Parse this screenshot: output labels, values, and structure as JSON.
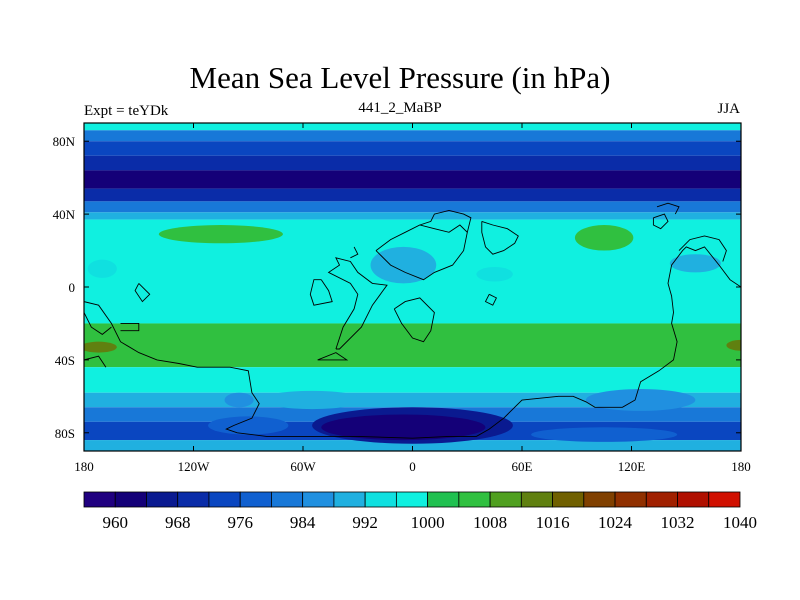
{
  "chart_data": {
    "type": "contour-map",
    "title": "Mean Sea Level Pressure (in hPa)",
    "experiment_label": "Expt = teYDk",
    "run_label": "441_2_MaBP",
    "season_label": "JJA",
    "xlim": [
      -180,
      180
    ],
    "ylim": [
      -90,
      90
    ],
    "x_ticks": [
      {
        "value": -180,
        "label": "180"
      },
      {
        "value": -120,
        "label": "120W"
      },
      {
        "value": -60,
        "label": "60W"
      },
      {
        "value": 0,
        "label": "0"
      },
      {
        "value": 60,
        "label": "60E"
      },
      {
        "value": 120,
        "label": "120E"
      },
      {
        "value": 180,
        "label": "180"
      }
    ],
    "y_ticks": [
      {
        "value": 80,
        "label": "80N"
      },
      {
        "value": 40,
        "label": "40N"
      },
      {
        "value": 0,
        "label": "0"
      },
      {
        "value": -40,
        "label": "40S"
      },
      {
        "value": -80,
        "label": "80S"
      }
    ],
    "colorbar": {
      "levels": [
        960,
        964,
        968,
        972,
        976,
        980,
        984,
        988,
        992,
        996,
        1000,
        1004,
        1008,
        1012,
        1016,
        1020,
        1024,
        1028,
        1032,
        1036,
        1040
      ],
      "labels": [
        "960",
        "968",
        "976",
        "984",
        "992",
        "1000",
        "1008",
        "1016",
        "1024",
        "1032",
        "1040"
      ],
      "colors": [
        "#200080",
        "#140078",
        "#0a1a90",
        "#0a2ca8",
        "#0a46c0",
        "#1060d0",
        "#1878d8",
        "#2090e0",
        "#20b0e0",
        "#10e0e0",
        "#10f0e0",
        "#20c050",
        "#30c040",
        "#50a020",
        "#608010",
        "#706000",
        "#804000",
        "#903000",
        "#a02000",
        "#b01000",
        "#d01000"
      ]
    },
    "bands": [
      {
        "lat_max": 90,
        "lat_min": 86,
        "level": 1000
      },
      {
        "lat_max": 86,
        "lat_min": 80,
        "level": 984
      },
      {
        "lat_max": 80,
        "lat_min": 72,
        "level": 976
      },
      {
        "lat_max": 72,
        "lat_min": 64,
        "level": 972
      },
      {
        "lat_max": 64,
        "lat_min": 54,
        "level": 964
      },
      {
        "lat_max": 54,
        "lat_min": 47,
        "level": 972
      },
      {
        "lat_max": 47,
        "lat_min": 41,
        "level": 984
      },
      {
        "lat_max": 41,
        "lat_min": 37,
        "level": 992
      },
      {
        "lat_max": 37,
        "lat_min": -20,
        "level": 1000
      },
      {
        "lat_max": -20,
        "lat_min": -44,
        "level": 1008
      },
      {
        "lat_max": -44,
        "lat_min": -58,
        "level": 1000
      },
      {
        "lat_max": -58,
        "lat_min": -66,
        "level": 992
      },
      {
        "lat_max": -66,
        "lat_min": -74,
        "level": 984
      },
      {
        "lat_max": -74,
        "lat_min": -84,
        "level": 976
      },
      {
        "lat_max": -84,
        "lat_min": -90,
        "level": 992
      }
    ],
    "features": [
      {
        "kind": "ellipse",
        "lon": -105,
        "lat": 29,
        "dlon": 34,
        "dlat": 5,
        "level": 1008
      },
      {
        "kind": "ellipse",
        "lon": 105,
        "lat": 27,
        "dlon": 16,
        "dlat": 7,
        "level": 1008
      },
      {
        "kind": "ellipse",
        "lon": -170,
        "lat": 10,
        "dlon": 8,
        "dlat": 5,
        "level": 996
      },
      {
        "kind": "ellipse",
        "lon": -5,
        "lat": 12,
        "dlon": 18,
        "dlat": 10,
        "level": 992
      },
      {
        "kind": "ellipse",
        "lon": 45,
        "lat": 7,
        "dlon": 10,
        "dlat": 4,
        "level": 996
      },
      {
        "kind": "ellipse",
        "lon": 155,
        "lat": 13,
        "dlon": 14,
        "dlat": 5,
        "level": 992
      },
      {
        "kind": "ellipse",
        "lon": -172,
        "lat": -33,
        "dlon": 10,
        "dlat": 3,
        "level": 1016
      },
      {
        "kind": "ellipse",
        "lon": 180,
        "lat": -32,
        "dlon": 8,
        "dlat": 3,
        "level": 1016
      },
      {
        "kind": "ellipse",
        "lon": -95,
        "lat": -62,
        "dlon": 8,
        "dlat": 4,
        "level": 988
      },
      {
        "kind": "ellipse",
        "lon": -55,
        "lat": -62,
        "dlon": 28,
        "dlat": 5,
        "level": 992
      },
      {
        "kind": "ellipse",
        "lon": 125,
        "lat": -62,
        "dlon": 30,
        "dlat": 6,
        "level": 988
      },
      {
        "kind": "ellipse",
        "lon": -90,
        "lat": -76,
        "dlon": 22,
        "dlat": 5,
        "level": 980
      },
      {
        "kind": "ellipse",
        "lon": 0,
        "lat": -76,
        "dlon": 55,
        "dlat": 10,
        "level": 968
      },
      {
        "kind": "ellipse",
        "lon": -5,
        "lat": -77,
        "dlon": 45,
        "dlat": 7,
        "level": 964
      },
      {
        "kind": "ellipse",
        "lon": 105,
        "lat": -81,
        "dlon": 40,
        "dlat": 4,
        "level": 980
      }
    ],
    "coastlines": [
      [
        [
          -180,
          -8
        ],
        [
          -172,
          -10
        ],
        [
          -165,
          -20
        ],
        [
          -160,
          -30
        ],
        [
          -150,
          -36
        ],
        [
          -140,
          -40
        ],
        [
          -128,
          -42
        ],
        [
          -118,
          -44
        ],
        [
          -100,
          -44
        ],
        [
          -90,
          -46
        ],
        [
          -88,
          -58
        ],
        [
          -84,
          -64
        ],
        [
          -88,
          -72
        ],
        [
          -98,
          -76
        ],
        [
          -102,
          -78
        ],
        [
          -96,
          -80
        ],
        [
          -80,
          -82
        ],
        [
          -60,
          -82
        ],
        [
          -30,
          -82
        ],
        [
          0,
          -83
        ],
        [
          20,
          -82
        ],
        [
          35,
          -82
        ],
        [
          42,
          -78
        ],
        [
          50,
          -72
        ],
        [
          60,
          -62
        ],
        [
          80,
          -60
        ],
        [
          88,
          -60
        ],
        [
          95,
          -63
        ],
        [
          100,
          -66
        ],
        [
          115,
          -66
        ],
        [
          122,
          -62
        ],
        [
          125,
          -52
        ],
        [
          135,
          -46
        ],
        [
          143,
          -40
        ],
        [
          145,
          -30
        ],
        [
          142,
          -20
        ],
        [
          143,
          -14
        ],
        [
          142,
          -5
        ],
        [
          140,
          2
        ],
        [
          142,
          12
        ],
        [
          148,
          20
        ],
        [
          150,
          22
        ],
        [
          155,
          20
        ],
        [
          160,
          22
        ],
        [
          168,
          12
        ],
        [
          174,
          4
        ],
        [
          180,
          0
        ]
      ],
      [
        [
          -180,
          -14
        ],
        [
          -176,
          -22
        ],
        [
          -170,
          -26
        ],
        [
          -165,
          -22
        ]
      ],
      [
        [
          -185,
          -14
        ],
        [
          -180,
          -14
        ]
      ],
      [
        [
          -160,
          -20
        ],
        [
          -150,
          -20
        ],
        [
          -150,
          -24
        ],
        [
          -160,
          -24
        ]
      ],
      [
        [
          -42,
          -34
        ],
        [
          -38,
          -22
        ],
        [
          -32,
          -12
        ],
        [
          -30,
          -4
        ],
        [
          -34,
          2
        ],
        [
          -46,
          8
        ],
        [
          -40,
          12
        ],
        [
          -42,
          16
        ],
        [
          -34,
          14
        ],
        [
          -30,
          8
        ],
        [
          -22,
          2
        ],
        [
          -14,
          1
        ],
        [
          -22,
          -10
        ],
        [
          -28,
          -22
        ],
        [
          -40,
          -34
        ],
        [
          -42,
          -34
        ]
      ],
      [
        [
          -52,
          -40
        ],
        [
          -42,
          -36
        ],
        [
          -36,
          -40
        ],
        [
          -52,
          -40
        ]
      ],
      [
        [
          -10,
          -12
        ],
        [
          -6,
          -20
        ],
        [
          0,
          -28
        ],
        [
          6,
          -30
        ],
        [
          10,
          -24
        ],
        [
          12,
          -14
        ],
        [
          4,
          -6
        ],
        [
          -4,
          -8
        ],
        [
          -10,
          -12
        ]
      ],
      [
        [
          -20,
          20
        ],
        [
          -12,
          26
        ],
        [
          -4,
          30
        ],
        [
          4,
          34
        ],
        [
          12,
          32
        ],
        [
          20,
          30
        ],
        [
          26,
          34
        ],
        [
          30,
          30
        ],
        [
          28,
          20
        ],
        [
          22,
          12
        ],
        [
          12,
          8
        ],
        [
          6,
          4
        ],
        [
          -4,
          8
        ],
        [
          -12,
          12
        ],
        [
          -20,
          20
        ]
      ],
      [
        [
          4,
          34
        ],
        [
          10,
          36
        ],
        [
          12,
          40
        ],
        [
          20,
          42
        ],
        [
          28,
          40
        ],
        [
          32,
          38
        ],
        [
          30,
          30
        ]
      ],
      [
        [
          38,
          36
        ],
        [
          44,
          34
        ],
        [
          52,
          32
        ],
        [
          58,
          28
        ],
        [
          56,
          24
        ],
        [
          50,
          20
        ],
        [
          44,
          18
        ],
        [
          40,
          22
        ],
        [
          38,
          30
        ],
        [
          38,
          36
        ]
      ],
      [
        [
          -50,
          4
        ],
        [
          -46,
          -2
        ],
        [
          -44,
          -8
        ],
        [
          -54,
          -10
        ],
        [
          -56,
          -4
        ],
        [
          -54,
          4
        ],
        [
          -50,
          4
        ]
      ],
      [
        [
          -34,
          16
        ],
        [
          -30,
          18
        ],
        [
          -32,
          22
        ]
      ],
      [
        [
          132,
          38
        ],
        [
          138,
          40
        ],
        [
          140,
          36
        ],
        [
          136,
          32
        ],
        [
          132,
          34
        ],
        [
          132,
          38
        ]
      ],
      [
        [
          -180,
          -40
        ],
        [
          -172,
          -38
        ],
        [
          -168,
          -44
        ]
      ],
      [
        [
          134,
          44
        ],
        [
          140,
          46
        ],
        [
          146,
          44
        ],
        [
          144,
          40
        ]
      ],
      [
        [
          146,
          20
        ],
        [
          152,
          26
        ],
        [
          160,
          28
        ],
        [
          168,
          26
        ],
        [
          172,
          20
        ],
        [
          170,
          14
        ]
      ],
      [
        [
          -150,
          2
        ],
        [
          -144,
          -4
        ],
        [
          -148,
          -8
        ],
        [
          -152,
          -2
        ],
        [
          -150,
          2
        ]
      ],
      [
        [
          42,
          -4
        ],
        [
          46,
          -6
        ],
        [
          44,
          -10
        ],
        [
          40,
          -8
        ],
        [
          42,
          -4
        ]
      ]
    ]
  }
}
